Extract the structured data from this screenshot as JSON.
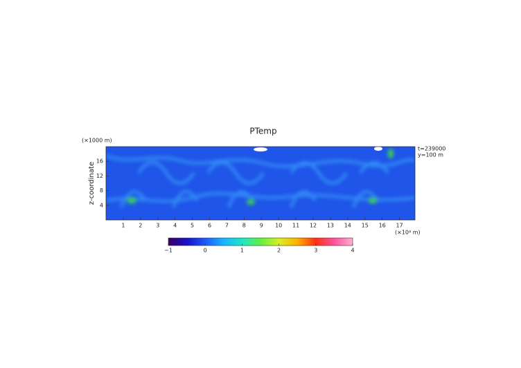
{
  "chart_data": {
    "type": "heatmap",
    "title": "PTemp",
    "x_unit_label": "(×10⁴ m)",
    "y_unit_label": "(×1000 m)",
    "ylabel": "z-coordinate",
    "annotations": [
      "t=239000",
      "y=100 m"
    ],
    "xlim": [
      0,
      17.9
    ],
    "xticks": [
      1,
      2,
      3,
      4,
      5,
      6,
      7,
      8,
      9,
      10,
      11,
      12,
      13,
      14,
      15,
      16,
      17
    ],
    "ylim": [
      0,
      20
    ],
    "yticks": [
      4,
      8,
      12,
      16
    ],
    "colorbar_lim": [
      -1,
      4
    ],
    "colorbar_ticks": [
      {
        "value": -1,
        "label": "−1"
      },
      0,
      1,
      2,
      3,
      4
    ],
    "colormap": [
      "#3a0060",
      "#1a10c8",
      "#1e5aff",
      "#1ab4ff",
      "#20e6c8",
      "#60f040",
      "#d8f020",
      "#ffb000",
      "#ff3010",
      "#ff50a0",
      "#ffb0d0"
    ]
  }
}
